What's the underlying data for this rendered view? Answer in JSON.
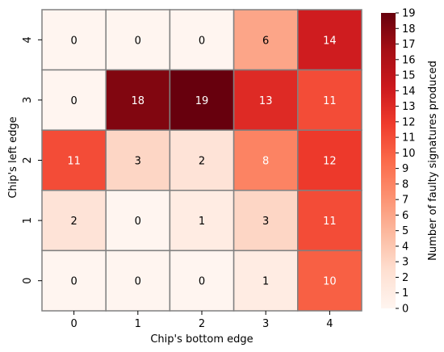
{
  "chart_data": {
    "type": "heatmap",
    "xlabel": "Chip's bottom edge",
    "ylabel": "Chip's left edge",
    "colorbar_label": "Number of faulty signatures produced",
    "x_categories": [
      "0",
      "1",
      "2",
      "3",
      "4"
    ],
    "y_categories": [
      "4",
      "3",
      "2",
      "1",
      "0"
    ],
    "values": [
      [
        0,
        0,
        0,
        6,
        14
      ],
      [
        0,
        18,
        19,
        13,
        11
      ],
      [
        11,
        3,
        2,
        8,
        12
      ],
      [
        2,
        0,
        1,
        3,
        11
      ],
      [
        0,
        0,
        0,
        1,
        10
      ]
    ],
    "colorbar_ticks": [
      "0",
      "1",
      "2",
      "3",
      "4",
      "5",
      "6",
      "7",
      "8",
      "9",
      "10",
      "11",
      "12",
      "13",
      "14",
      "15",
      "16",
      "17",
      "18",
      "19"
    ],
    "vmin": 0,
    "vmax": 19,
    "colormap": "Reds",
    "colormap_stops": [
      "#fff5f0",
      "#fee0d2",
      "#fcbba1",
      "#fc9272",
      "#fb6a4a",
      "#ef3b2c",
      "#cb181d",
      "#a50f15",
      "#67000d"
    ],
    "cell_border_color": "#808080"
  }
}
